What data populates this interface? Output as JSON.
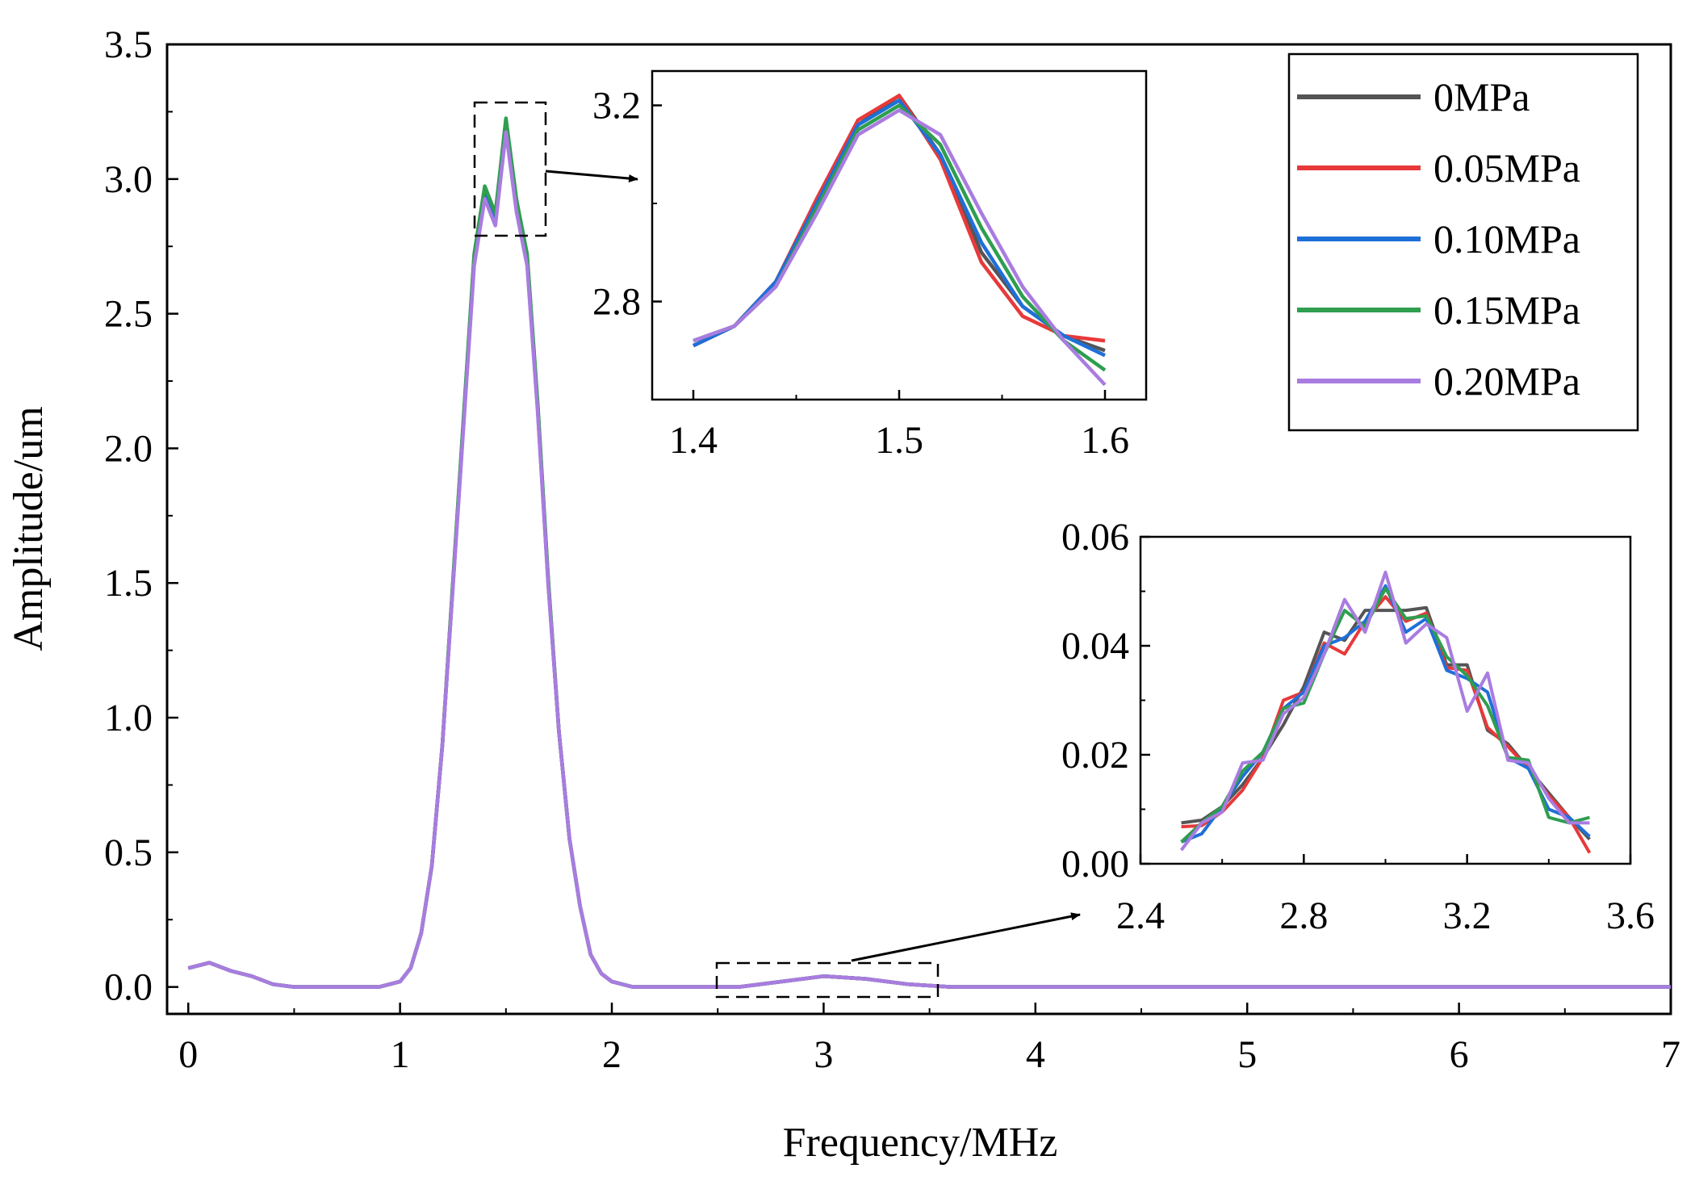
{
  "chart_data": [
    {
      "id": "main",
      "type": "line",
      "title": "",
      "xlabel": "Frequency/MHz",
      "ylabel": "Amplitude/um",
      "xlim": [
        -0.1,
        7
      ],
      "ylim": [
        -0.1,
        3.5
      ],
      "xticks": [
        "0",
        "1",
        "2",
        "3",
        "4",
        "5",
        "6",
        "7"
      ],
      "yticks": [
        "0.0",
        "0.5",
        "1.0",
        "1.5",
        "2.0",
        "2.5",
        "3.0",
        "3.5"
      ],
      "legend_position": "top-right",
      "grid": false,
      "series": [
        {
          "name": "0MPa",
          "color": "#555555"
        },
        {
          "name": "0.05MPa",
          "color": "#e8393a"
        },
        {
          "name": "0.10MPa",
          "color": "#1f6fd8"
        },
        {
          "name": "0.15MPa",
          "color": "#2e9e4f"
        },
        {
          "name": "0.20MPa",
          "color": "#a97ce0"
        }
      ],
      "x": [
        0,
        0.1,
        0.2,
        0.3,
        0.4,
        0.5,
        0.6,
        0.7,
        0.8,
        0.9,
        1.0,
        1.05,
        1.1,
        1.15,
        1.2,
        1.25,
        1.3,
        1.35,
        1.4,
        1.45,
        1.5,
        1.55,
        1.6,
        1.65,
        1.7,
        1.75,
        1.8,
        1.85,
        1.9,
        1.95,
        2.0,
        2.05,
        2.1,
        2.2,
        2.4,
        2.6,
        2.8,
        3.0,
        3.2,
        3.4,
        3.6,
        4.0,
        4.5,
        5.0,
        5.5,
        6.0,
        6.5,
        7.0
      ],
      "y": [
        0.07,
        0.09,
        0.06,
        0.04,
        0.01,
        0.0,
        0.0,
        0.0,
        0.0,
        0.0,
        0.02,
        0.07,
        0.2,
        0.45,
        0.9,
        1.5,
        2.1,
        2.7,
        2.95,
        2.85,
        3.2,
        2.9,
        2.7,
        2.15,
        1.5,
        0.95,
        0.55,
        0.3,
        0.12,
        0.05,
        0.02,
        0.01,
        0.0,
        0.0,
        0.0,
        0.0,
        0.02,
        0.04,
        0.03,
        0.01,
        0.0,
        0.0,
        0.0,
        0.0,
        0.0,
        0.0,
        0.0,
        0.0
      ]
    },
    {
      "id": "inset_peak",
      "type": "line",
      "xlim": [
        1.38,
        1.62
      ],
      "ylim": [
        2.6,
        3.27
      ],
      "xticks": [
        "1.4",
        "1.5",
        "1.6"
      ],
      "yticks": [
        "2.8",
        "3.2"
      ],
      "x": [
        1.4,
        1.42,
        1.44,
        1.46,
        1.48,
        1.5,
        1.52,
        1.54,
        1.56,
        1.58,
        1.6
      ],
      "series": [
        {
          "name": "0MPa",
          "color": "#555555",
          "values": [
            2.71,
            2.75,
            2.84,
            3.0,
            3.16,
            3.22,
            3.1,
            2.9,
            2.79,
            2.73,
            2.7
          ]
        },
        {
          "name": "0.05MPa",
          "color": "#e8393a",
          "values": [
            2.71,
            2.75,
            2.84,
            3.01,
            3.17,
            3.22,
            3.09,
            2.88,
            2.77,
            2.73,
            2.72
          ]
        },
        {
          "name": "0.10MPa",
          "color": "#1f6fd8",
          "values": [
            2.71,
            2.75,
            2.84,
            3.0,
            3.16,
            3.21,
            3.1,
            2.92,
            2.79,
            2.73,
            2.69
          ]
        },
        {
          "name": "0.15MPa",
          "color": "#2e9e4f",
          "values": [
            2.72,
            2.75,
            2.83,
            2.99,
            3.15,
            3.2,
            3.12,
            2.95,
            2.81,
            2.72,
            2.66
          ]
        },
        {
          "name": "0.20MPa",
          "color": "#a97ce0",
          "values": [
            2.72,
            2.75,
            2.83,
            2.98,
            3.14,
            3.19,
            3.14,
            2.98,
            2.83,
            2.72,
            2.63
          ]
        }
      ]
    },
    {
      "id": "inset_harmonic",
      "type": "line",
      "xlim": [
        2.4,
        3.6
      ],
      "ylim": [
        0.0,
        0.06
      ],
      "xticks": [
        "2.4",
        "2.8",
        "3.2",
        "3.6"
      ],
      "yticks": [
        "0.00",
        "0.02",
        "0.04",
        "0.06"
      ],
      "x": [
        2.5,
        2.55,
        2.6,
        2.65,
        2.7,
        2.75,
        2.8,
        2.85,
        2.9,
        2.95,
        3.0,
        3.05,
        3.1,
        3.15,
        3.2,
        3.25,
        3.3,
        3.35,
        3.4,
        3.45,
        3.5
      ],
      "series": [
        {
          "name": "0MPa",
          "color": "#555555",
          "values": [
            0.0075,
            0.008,
            0.0105,
            0.0145,
            0.0195,
            0.0255,
            0.0325,
            0.0425,
            0.041,
            0.0465,
            0.0465,
            0.0465,
            0.047,
            0.0365,
            0.0365,
            0.0245,
            0.022,
            0.0175,
            0.013,
            0.0085,
            0.0045
          ]
        },
        {
          "name": "0.05MPa",
          "color": "#e8393a",
          "values": [
            0.0068,
            0.007,
            0.0095,
            0.0135,
            0.0195,
            0.03,
            0.0315,
            0.0405,
            0.0385,
            0.0445,
            0.049,
            0.0445,
            0.046,
            0.036,
            0.0355,
            0.025,
            0.0215,
            0.0175,
            0.0125,
            0.0085,
            0.002
          ]
        },
        {
          "name": "0.10MPa",
          "color": "#1f6fd8",
          "values": [
            0.004,
            0.0055,
            0.0105,
            0.016,
            0.0205,
            0.0285,
            0.0315,
            0.04,
            0.0415,
            0.0445,
            0.051,
            0.0425,
            0.045,
            0.0355,
            0.034,
            0.0315,
            0.0195,
            0.0175,
            0.01,
            0.0085,
            0.005
          ]
        },
        {
          "name": "0.15MPa",
          "color": "#2e9e4f",
          "values": [
            0.004,
            0.0075,
            0.0105,
            0.017,
            0.0205,
            0.0285,
            0.0295,
            0.0385,
            0.0465,
            0.0435,
            0.0505,
            0.045,
            0.0455,
            0.038,
            0.0345,
            0.029,
            0.0195,
            0.019,
            0.0085,
            0.0075,
            0.0085
          ]
        },
        {
          "name": "0.20MPa",
          "color": "#a97ce0",
          "values": [
            0.0025,
            0.0075,
            0.0095,
            0.0185,
            0.019,
            0.0275,
            0.0305,
            0.0385,
            0.0485,
            0.0425,
            0.0535,
            0.0405,
            0.044,
            0.0415,
            0.028,
            0.035,
            0.019,
            0.0185,
            0.012,
            0.0075,
            0.0075
          ]
        }
      ]
    }
  ]
}
